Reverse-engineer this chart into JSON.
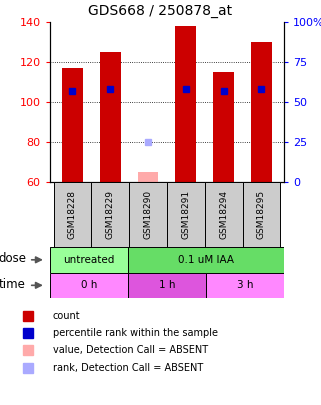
{
  "title": "GDS668 / 250878_at",
  "samples": [
    "GSM18228",
    "GSM18229",
    "GSM18290",
    "GSM18291",
    "GSM18294",
    "GSM18295"
  ],
  "count_values": [
    117,
    125,
    65,
    138,
    115,
    130
  ],
  "count_absent": [
    false,
    false,
    true,
    false,
    false,
    false
  ],
  "rank_values": [
    57,
    58,
    25,
    58,
    57,
    58
  ],
  "rank_absent": [
    false,
    false,
    true,
    false,
    false,
    false
  ],
  "ylim_left": [
    60,
    140
  ],
  "ylim_right": [
    0,
    100
  ],
  "yticks_left": [
    60,
    80,
    100,
    120,
    140
  ],
  "yticks_right": [
    0,
    25,
    50,
    75,
    100
  ],
  "ytick_labels_right": [
    "0",
    "25",
    "50",
    "75",
    "100%"
  ],
  "bar_color_normal": "#cc0000",
  "bar_color_absent": "#ffaaaa",
  "rank_color_normal": "#0000cc",
  "rank_color_absent": "#aaaaff",
  "bar_width": 0.55,
  "baseline": 60,
  "dose_groups": [
    {
      "label": "untreated",
      "start": 0,
      "end": 2,
      "color": "#99ff99"
    },
    {
      "label": "0.1 uM IAA",
      "start": 2,
      "end": 6,
      "color": "#66dd66"
    }
  ],
  "time_groups": [
    {
      "label": "0 h",
      "start": 0,
      "end": 2,
      "color": "#ff88ff"
    },
    {
      "label": "1 h",
      "start": 2,
      "end": 4,
      "color": "#dd55dd"
    },
    {
      "label": "3 h",
      "start": 4,
      "end": 6,
      "color": "#ff88ff"
    }
  ],
  "legend_items": [
    {
      "label": "count",
      "color": "#cc0000"
    },
    {
      "label": "percentile rank within the sample",
      "color": "#0000cc"
    },
    {
      "label": "value, Detection Call = ABSENT",
      "color": "#ffaaaa"
    },
    {
      "label": "rank, Detection Call = ABSENT",
      "color": "#aaaaff"
    }
  ],
  "bg_color": "#ffffff"
}
